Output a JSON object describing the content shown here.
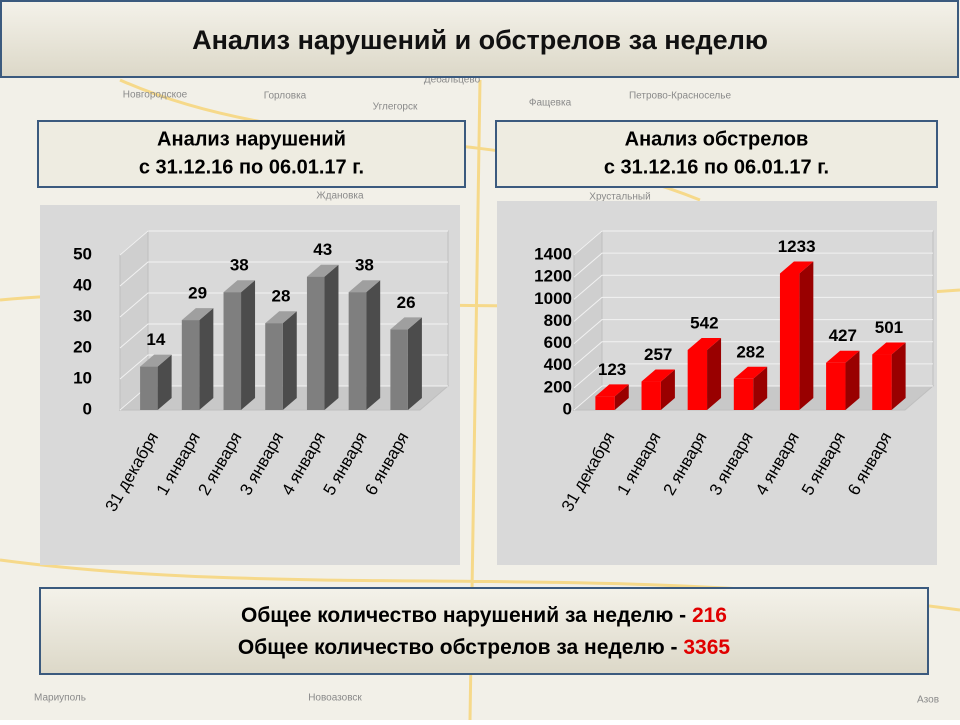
{
  "header": {
    "title": "Анализ нарушений и обстрелов за неделю"
  },
  "map_labels": [
    "Новгородское",
    "Горловка",
    "Углегорск",
    "Дебальцево",
    "Фащевка",
    "Петрово-Красноселье",
    "Ждановка",
    "Хрустальный",
    "Мариуполь",
    "Новоазовск",
    "Азов"
  ],
  "chart_data": [
    {
      "type": "bar",
      "title": "Анализ нарушений",
      "subtitle": "с 31.12.16 по 06.01.17 г.",
      "categories": [
        "31 декабря",
        "1 января",
        "2 января",
        "3 января",
        "4 января",
        "5 января",
        "6 января"
      ],
      "values": [
        14,
        29,
        38,
        28,
        43,
        38,
        26
      ],
      "color": "#7f7f7f",
      "ylim": [
        0,
        50
      ],
      "yticks": [
        0,
        10,
        20,
        30,
        40,
        50
      ],
      "grid": true
    },
    {
      "type": "bar",
      "title": "Анализ обстрелов",
      "subtitle": "с 31.12.16 по 06.01.17 г.",
      "categories": [
        "31 декабря",
        "1 января",
        "2 января",
        "3 января",
        "4 января",
        "5 января",
        "6 января"
      ],
      "values": [
        123,
        257,
        542,
        282,
        1233,
        427,
        501
      ],
      "color": "#ff0000",
      "ylim": [
        0,
        1400
      ],
      "yticks": [
        0,
        200,
        400,
        600,
        800,
        1000,
        1200,
        1400
      ],
      "grid": true
    }
  ],
  "summary": [
    {
      "text": "Общее количество нарушений за неделю - ",
      "value": 216
    },
    {
      "text": "Общее количество обстрелов за неделю - ",
      "value": 3365
    }
  ]
}
